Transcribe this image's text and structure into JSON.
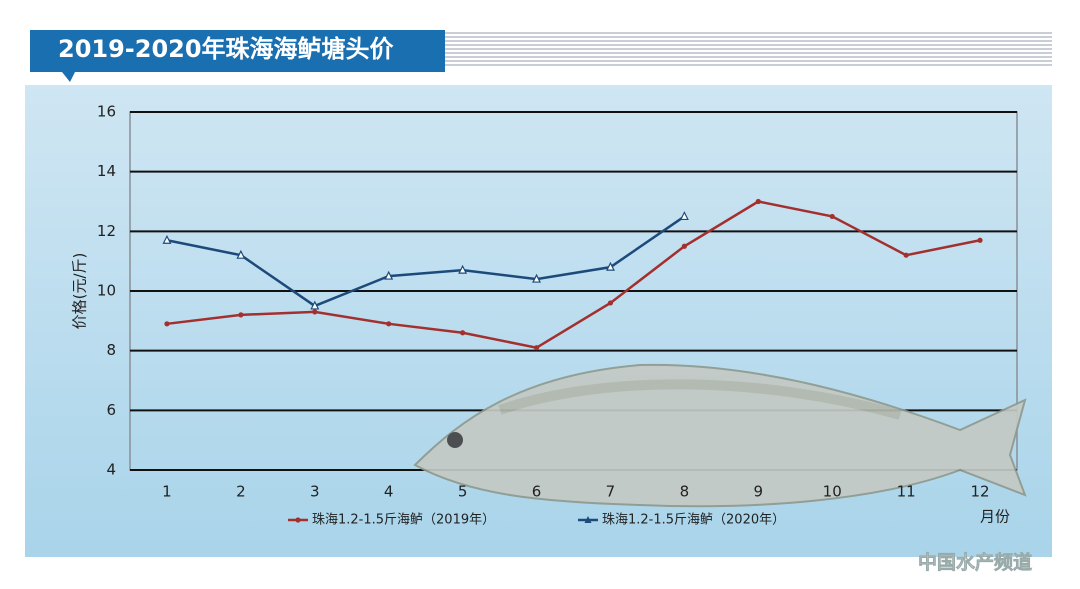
{
  "chart_data": {
    "type": "line",
    "title": "2019-2020年珠海海鲈塘头价",
    "y_label": "价格(元/斤)",
    "x_label": "月份",
    "watermark": "中国水产频道",
    "categories": [
      "1",
      "2",
      "3",
      "4",
      "5",
      "6",
      "7",
      "8",
      "9",
      "10",
      "11",
      "12"
    ],
    "series": [
      {
        "name": "珠海1.2-1.5斤海鲈（2019年）",
        "color": "#a3302f",
        "marker": "circle",
        "values": [
          8.9,
          9.2,
          9.3,
          8.9,
          8.6,
          8.1,
          9.6,
          11.5,
          13.0,
          12.5,
          11.2,
          11.7
        ]
      },
      {
        "name": "珠海1.2-1.5斤海鲈（2020年）",
        "color": "#1c4a7a",
        "marker": "triangle",
        "values": [
          11.7,
          11.2,
          9.5,
          10.5,
          10.7,
          10.4,
          10.8,
          12.5,
          null,
          null,
          null,
          null
        ]
      }
    ],
    "ylim": [
      4,
      16
    ],
    "yticks": [
      4,
      6,
      8,
      10,
      12,
      14,
      16
    ],
    "grid": true
  }
}
